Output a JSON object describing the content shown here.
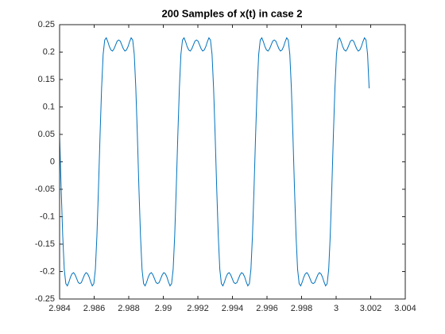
{
  "chart_data": {
    "type": "line",
    "title": "200 Samples of x(t) in case 2",
    "x": [
      2.984,
      2.98409,
      2.98418,
      2.98427,
      2.98436,
      2.98445,
      2.98454,
      2.98463,
      2.98472,
      2.98481,
      2.9849,
      2.98499,
      2.98508,
      2.98517,
      2.98526,
      2.98535,
      2.98544,
      2.98553,
      2.98562,
      2.98571,
      2.9858,
      2.98589,
      2.98598,
      2.98607,
      2.98616,
      2.98625,
      2.98634,
      2.98643,
      2.98652,
      2.98661,
      2.9867,
      2.98679,
      2.98688,
      2.98697,
      2.98706,
      2.98715,
      2.98724,
      2.98733,
      2.98742,
      2.98751,
      2.9876,
      2.98769,
      2.98778,
      2.98787,
      2.98796,
      2.98805,
      2.98814,
      2.98823,
      2.98832,
      2.98841,
      2.9885,
      2.98859,
      2.98868,
      2.98877,
      2.98886,
      2.98895,
      2.98904,
      2.98913,
      2.98922,
      2.98931,
      2.9894,
      2.98949,
      2.98958,
      2.98967,
      2.98976,
      2.98985,
      2.98994,
      2.99003,
      2.99012,
      2.99021,
      2.9903,
      2.99039,
      2.99048,
      2.99057,
      2.99066,
      2.99075,
      2.99084,
      2.99093,
      2.99102,
      2.99111,
      2.9912,
      2.99129,
      2.99138,
      2.99147,
      2.99156,
      2.99165,
      2.99174,
      2.99183,
      2.99192,
      2.99201,
      2.9921,
      2.99219,
      2.99228,
      2.99237,
      2.99246,
      2.99255,
      2.99264,
      2.99273,
      2.99282,
      2.99291,
      2.993,
      2.99309,
      2.99318,
      2.99327,
      2.99336,
      2.99345,
      2.99354,
      2.99363,
      2.99372,
      2.99381,
      2.9939,
      2.99399,
      2.99408,
      2.99417,
      2.99426,
      2.99435,
      2.99444,
      2.99453,
      2.99462,
      2.99471,
      2.9948,
      2.99489,
      2.99498,
      2.99507,
      2.99516,
      2.99525,
      2.99534,
      2.99543,
      2.99552,
      2.99561,
      2.9957,
      2.99579,
      2.99588,
      2.99597,
      2.99606,
      2.99615,
      2.99624,
      2.99633,
      2.99642,
      2.99651,
      2.9966,
      2.99669,
      2.99678,
      2.99687,
      2.99696,
      2.99705,
      2.99714,
      2.99723,
      2.99732,
      2.99741,
      2.9975,
      2.99759,
      2.99768,
      2.99777,
      2.99786,
      2.99795,
      2.99804,
      2.99813,
      2.99822,
      2.99831,
      2.9984,
      2.99849,
      2.99858,
      2.99867,
      2.99876,
      2.99885,
      2.99894,
      2.99903,
      2.99912,
      2.99921,
      2.9993,
      2.99939,
      2.99948,
      2.99957,
      2.99966,
      2.99975,
      2.99984,
      2.99993,
      3.00002,
      3.00011,
      3.0002,
      3.00029,
      3.00038,
      3.00047,
      3.00056,
      3.00065,
      3.00074,
      3.00083,
      3.00092,
      3.00101,
      3.0011,
      3.00119,
      3.00128,
      3.00137,
      3.00146,
      3.00155,
      3.00164,
      3.00173,
      3.00182,
      3.00191
    ],
    "series": [
      {
        "color": "#0072bd",
        "values": [
          0.048,
          -0.048,
          -0.134,
          -0.196,
          -0.222,
          -0.226,
          -0.219,
          -0.21,
          -0.204,
          -0.202,
          -0.206,
          -0.213,
          -0.22,
          -0.222,
          -0.22,
          -0.213,
          -0.206,
          -0.202,
          -0.204,
          -0.21,
          -0.219,
          -0.226,
          -0.222,
          -0.196,
          -0.134,
          -0.048,
          0.048,
          0.134,
          0.196,
          0.222,
          0.226,
          0.219,
          0.21,
          0.204,
          0.202,
          0.206,
          0.213,
          0.22,
          0.222,
          0.22,
          0.213,
          0.206,
          0.202,
          0.204,
          0.21,
          0.219,
          0.226,
          0.222,
          0.196,
          0.134,
          0.048,
          -0.048,
          -0.134,
          -0.196,
          -0.222,
          -0.226,
          -0.219,
          -0.21,
          -0.204,
          -0.202,
          -0.206,
          -0.213,
          -0.22,
          -0.222,
          -0.22,
          -0.213,
          -0.206,
          -0.202,
          -0.204,
          -0.21,
          -0.219,
          -0.226,
          -0.222,
          -0.196,
          -0.134,
          -0.048,
          0.048,
          0.134,
          0.196,
          0.222,
          0.226,
          0.219,
          0.21,
          0.204,
          0.202,
          0.206,
          0.213,
          0.22,
          0.222,
          0.22,
          0.213,
          0.206,
          0.202,
          0.204,
          0.21,
          0.219,
          0.226,
          0.222,
          0.196,
          0.134,
          0.048,
          -0.048,
          -0.134,
          -0.196,
          -0.222,
          -0.226,
          -0.219,
          -0.21,
          -0.204,
          -0.202,
          -0.206,
          -0.213,
          -0.22,
          -0.222,
          -0.22,
          -0.213,
          -0.206,
          -0.202,
          -0.204,
          -0.21,
          -0.219,
          -0.226,
          -0.222,
          -0.196,
          -0.134,
          -0.048,
          0.048,
          0.134,
          0.196,
          0.222,
          0.226,
          0.219,
          0.21,
          0.204,
          0.202,
          0.206,
          0.213,
          0.22,
          0.222,
          0.22,
          0.213,
          0.206,
          0.202,
          0.204,
          0.21,
          0.219,
          0.226,
          0.222,
          0.196,
          0.134,
          0.048,
          -0.048,
          -0.134,
          -0.196,
          -0.222,
          -0.226,
          -0.219,
          -0.21,
          -0.204,
          -0.202,
          -0.206,
          -0.213,
          -0.22,
          -0.222,
          -0.22,
          -0.213,
          -0.206,
          -0.202,
          -0.204,
          -0.21,
          -0.219,
          -0.226,
          -0.222,
          -0.196,
          -0.134,
          -0.048,
          0.048,
          0.134,
          0.196,
          0.222,
          0.226,
          0.219,
          0.21,
          0.204,
          0.202,
          0.206,
          0.213,
          0.22,
          0.222,
          0.22,
          0.213,
          0.206,
          0.202,
          0.204,
          0.21,
          0.219,
          0.226,
          0.222,
          0.196,
          0.134
        ]
      }
    ],
    "xlim": [
      2.984,
      3.004
    ],
    "xticks": [
      2.984,
      2.986,
      2.988,
      2.99,
      2.992,
      2.994,
      2.996,
      2.998,
      3,
      3.002,
      3.004
    ],
    "ylim": [
      -0.25,
      0.25
    ],
    "yticks": [
      -0.25,
      -0.2,
      -0.15,
      -0.1,
      -0.05,
      0,
      0.05,
      0.1,
      0.15,
      0.2,
      0.25
    ],
    "grid": false
  }
}
